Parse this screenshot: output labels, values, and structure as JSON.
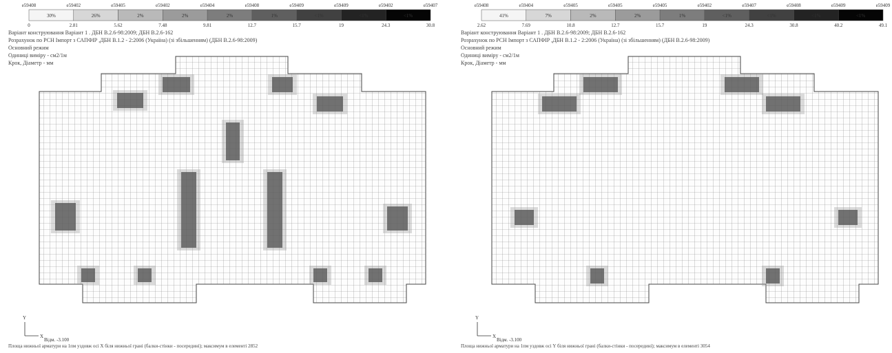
{
  "panels": [
    {
      "legend": {
        "element_labels": [
          "e59408",
          "e59402",
          "e59405",
          "e59402",
          "e59404",
          "e59408",
          "e59409",
          "e59409",
          "e59402",
          "e59407"
        ],
        "values": [
          "0",
          "2.81",
          "5.62",
          "7.48",
          "9.81",
          "12.7",
          "15.7",
          "19",
          "24.3",
          "30.8"
        ],
        "percents": [
          "30%",
          "26%",
          "2%",
          "2%",
          "2%",
          "1%",
          "<1%",
          "<1%",
          "<1%"
        ]
      },
      "header_lines": [
        "Варіант конструювання Варіант 1 . ДБН В.2.6-98:2009; ДБН В.2.6-162",
        "Розрахунок по РСН Імпорт з САПФІР ,ДБН В.1.2 - 2:2006 (Україна) (зі збільшенням) (ДБН В.2.6-98:2009)",
        "Основний режим",
        "Одиниці виміру - см2/1м",
        "Крок, Діаметр - мм"
      ],
      "axis_y": "Y",
      "axis_x": "X",
      "level": "Відм. -3.100",
      "caption": "Площа нижньої арматури на 1пм уздовж осі X біля нижньої грані (балки-стінки - посередині); максимум в елементі 2852"
    },
    {
      "legend": {
        "element_labels": [
          "e59408",
          "e59404",
          "e59405",
          "e59405",
          "e59405",
          "e59402",
          "e59407",
          "e59408",
          "e59409",
          "e59409"
        ],
        "values": [
          "2.62",
          "7.69",
          "10.8",
          "12.7",
          "15.7",
          "19",
          "24.3",
          "30.8",
          "40.2",
          "49.1"
        ],
        "percents": [
          "41%",
          "7%",
          "2%",
          "2%",
          "1%",
          "<1%",
          "<1%",
          "<1%",
          "<1%"
        ]
      },
      "header_lines": [
        "Варіант конструювання Варіант 1 . ДБН В.2.6-98:2009; ДБН В.2.6-162",
        "Розрахунок по РСН Імпорт з САПФІР ,ДБН В.1.2 - 2:2006 (Україна) (зі збільшенням) (ДБН В.2.6-98:2009)",
        "Основний режим",
        "Одиниці виміру - см2/1м",
        "Крок, Діаметр - мм"
      ],
      "axis_y": "Y",
      "axis_x": "X",
      "level": "Відм. -3.100",
      "caption": "Площа нижньої арматури на 1пм уздовж осі Y біля нижньої грані (балки-стінки - посередині); максимум в елементі 3054"
    }
  ]
}
